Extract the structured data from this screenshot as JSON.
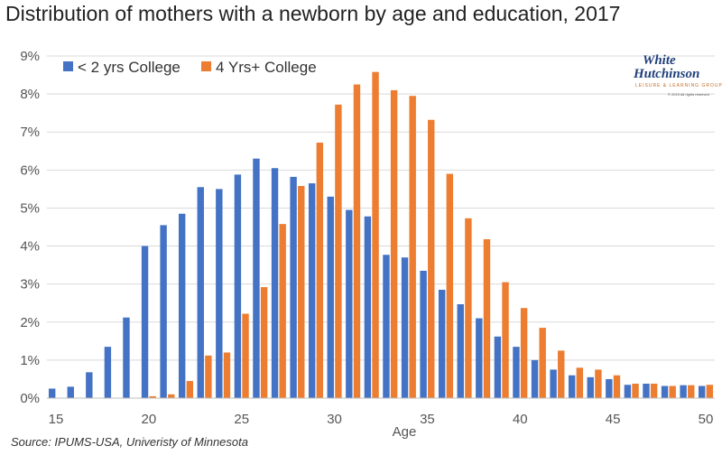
{
  "title": "Distribution of mothers with a newborn by age and education, 2017",
  "source": "Source: IPUMS-USA, Univeristy of Minnesota",
  "logo": {
    "line1": "White",
    "line2": "Hutchinson",
    "tagline": "LEISURE & LEARNING GROUP",
    "copyright": "© 2019 All rights reserved"
  },
  "colors": {
    "series_a": "#4472c4",
    "series_b": "#ed7d31",
    "grid": "#d9d9d9",
    "axis": "#bfbfbf"
  },
  "chart_data": {
    "type": "bar",
    "title": "Distribution of mothers with a newborn by age and education, 2017",
    "xlabel": "Age",
    "ylabel": "",
    "x": [
      15,
      16,
      17,
      18,
      19,
      20,
      21,
      22,
      23,
      24,
      25,
      26,
      27,
      28,
      29,
      30,
      31,
      32,
      33,
      34,
      35,
      36,
      37,
      38,
      39,
      40,
      41,
      42,
      43,
      44,
      45,
      46,
      47,
      48,
      49,
      50
    ],
    "xticks": [
      "15",
      "20",
      "25",
      "30",
      "35",
      "40",
      "45",
      "50"
    ],
    "ylim": [
      0,
      9
    ],
    "yticks": [
      "0%",
      "1%",
      "2%",
      "3%",
      "4%",
      "5%",
      "6%",
      "7%",
      "8%",
      "9%"
    ],
    "grid": true,
    "legend": "top-left",
    "series": [
      {
        "name": "< 2 yrs College",
        "values": [
          0.25,
          0.3,
          0.68,
          1.35,
          2.12,
          4.0,
          4.55,
          4.85,
          5.55,
          5.5,
          5.88,
          6.3,
          6.05,
          5.82,
          5.65,
          5.3,
          4.95,
          4.78,
          3.77,
          3.7,
          3.35,
          2.85,
          2.47,
          2.1,
          1.62,
          1.35,
          1.0,
          0.75,
          0.6,
          0.55,
          0.5,
          0.35,
          0.38,
          0.32,
          0.34,
          0.32
        ]
      },
      {
        "name": "4 Yrs+ College",
        "values": [
          0.0,
          0.0,
          0.0,
          0.0,
          0.0,
          0.05,
          0.1,
          0.45,
          1.12,
          1.2,
          2.22,
          2.92,
          4.58,
          5.58,
          6.72,
          7.72,
          8.25,
          8.58,
          8.1,
          7.95,
          7.32,
          5.9,
          4.73,
          4.18,
          3.05,
          2.37,
          1.85,
          1.25,
          0.8,
          0.75,
          0.6,
          0.38,
          0.38,
          0.32,
          0.34,
          0.35
        ]
      }
    ]
  }
}
